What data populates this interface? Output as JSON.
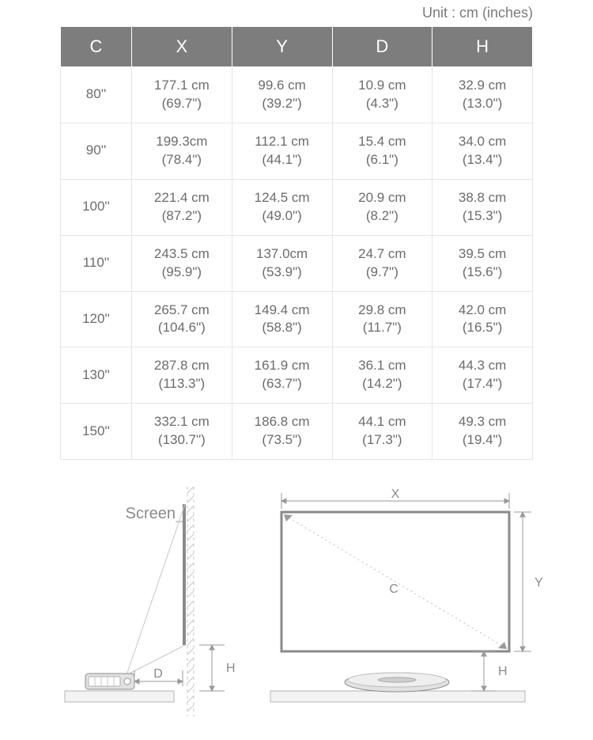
{
  "unit_label": "Unit : cm (inches)",
  "table": {
    "columns": [
      "C",
      "X",
      "Y",
      "D",
      "H"
    ],
    "rows": [
      {
        "c": "80''",
        "x_cm": "177.1 cm",
        "x_in": "(69.7\")",
        "y_cm": "99.6 cm",
        "y_in": "(39.2\")",
        "d_cm": "10.9 cm",
        "d_in": "(4.3\")",
        "h_cm": "32.9 cm",
        "h_in": "(13.0\")"
      },
      {
        "c": "90''",
        "x_cm": "199.3cm",
        "x_in": "(78.4\")",
        "y_cm": "112.1 cm",
        "y_in": "(44.1\")",
        "d_cm": "15.4 cm",
        "d_in": "(6.1\")",
        "h_cm": "34.0 cm",
        "h_in": "(13.4\")"
      },
      {
        "c": "100''",
        "x_cm": "221.4 cm",
        "x_in": "(87.2\")",
        "y_cm": "124.5 cm",
        "y_in": "(49.0\")",
        "d_cm": "20.9 cm",
        "d_in": "(8.2\")",
        "h_cm": "38.8 cm",
        "h_in": "(15.3\")"
      },
      {
        "c": "110''",
        "x_cm": "243.5 cm",
        "x_in": "(95.9\")",
        "y_cm": "137.0cm",
        "y_in": "(53.9\")",
        "d_cm": "24.7 cm",
        "d_in": "(9.7\")",
        "h_cm": "39.5 cm",
        "h_in": "(15.6\")"
      },
      {
        "c": "120''",
        "x_cm": "265.7 cm",
        "x_in": "(104.6\")",
        "y_cm": "149.4 cm",
        "y_in": "(58.8\")",
        "d_cm": "29.8 cm",
        "d_in": "(11.7\")",
        "h_cm": "42.0 cm",
        "h_in": "(16.5\")"
      },
      {
        "c": "130''",
        "x_cm": "287.8 cm",
        "x_in": "(113.3\")",
        "y_cm": "161.9 cm",
        "y_in": "(63.7\")",
        "d_cm": "36.1 cm",
        "d_in": "(14.2\")",
        "h_cm": "44.3 cm",
        "h_in": "(17.4\")"
      },
      {
        "c": "150''",
        "x_cm": "332.1 cm",
        "x_in": "(130.7\")",
        "y_cm": "186.8 cm",
        "y_in": "(73.5\")",
        "d_cm": "44.1 cm",
        "d_in": "(17.3\")",
        "h_cm": "49.3 cm",
        "h_in": "(19.4\")"
      }
    ]
  },
  "diagram": {
    "screen_label": "Screen",
    "x_label": "X",
    "y_label": "Y",
    "c_label": "C",
    "d_label": "D",
    "h_label": "H",
    "h_label2": "H",
    "colors": {
      "stroke_main": "#9a9a9a",
      "stroke_light": "#c7c7c7",
      "stroke_dotted": "#bdbdbd",
      "projector_fill": "#e1e1e1",
      "projector_stroke": "#8c8c8c",
      "table_fill": "#f3f3f3",
      "label_color": "#8a8a8a"
    }
  }
}
